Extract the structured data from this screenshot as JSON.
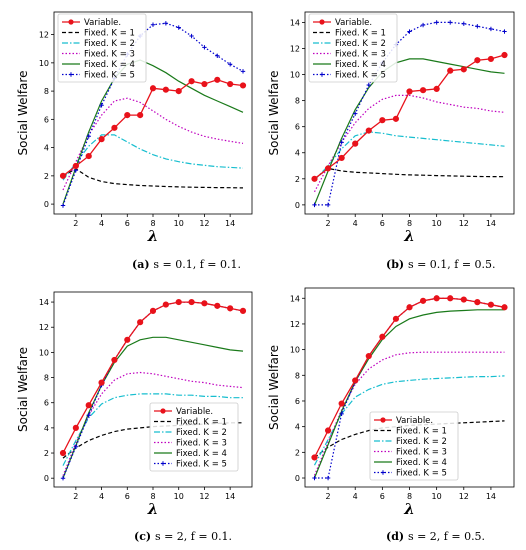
{
  "chart_data": [
    {
      "type": "line",
      "caption_label": "(a)",
      "caption_text": "s = 0.1, f = 0.1.",
      "xlabel": "λ",
      "ylabel": "Social Welfare",
      "xlim": [
        0.3,
        15.7
      ],
      "ylim": [
        -0.7,
        13.6
      ],
      "xticks": [
        2,
        4,
        6,
        8,
        10,
        12,
        14
      ],
      "yticks": [
        0,
        2,
        4,
        6,
        8,
        10,
        12
      ],
      "legend_position": "upper-left",
      "x": [
        1,
        2,
        3,
        4,
        5,
        6,
        7,
        8,
        9,
        10,
        11,
        12,
        13,
        14,
        15
      ],
      "series": [
        {
          "name": "Variable.",
          "color": "#e8121b",
          "style": "solid-marker",
          "values": [
            2.0,
            2.7,
            3.4,
            4.6,
            5.4,
            6.3,
            6.3,
            8.2,
            8.1,
            8.0,
            8.7,
            8.5,
            8.8,
            8.5,
            8.4
          ]
        },
        {
          "name": "Fixed. K = 1",
          "color": "#000000",
          "style": "dashed",
          "values": [
            2.0,
            2.5,
            1.9,
            1.6,
            1.45,
            1.38,
            1.32,
            1.28,
            1.25,
            1.22,
            1.2,
            1.18,
            1.17,
            1.16,
            1.15
          ]
        },
        {
          "name": "Fixed. K = 2",
          "color": "#17becf",
          "style": "dashdot",
          "values": [
            1.7,
            2.9,
            4.1,
            4.9,
            4.9,
            4.4,
            3.9,
            3.5,
            3.2,
            3.0,
            2.85,
            2.75,
            2.65,
            2.6,
            2.55
          ]
        },
        {
          "name": "Fixed. K = 3",
          "color": "#bf00bf",
          "style": "dotted",
          "values": [
            1.0,
            3.0,
            4.9,
            6.3,
            7.3,
            7.5,
            7.2,
            6.6,
            6.0,
            5.5,
            5.1,
            4.8,
            4.6,
            4.45,
            4.3
          ]
        },
        {
          "name": "Fixed. K = 4",
          "color": "#1a7a1a",
          "style": "solid",
          "values": [
            0.0,
            2.6,
            5.1,
            7.3,
            8.9,
            9.9,
            10.2,
            9.8,
            9.3,
            8.7,
            8.2,
            7.7,
            7.3,
            6.9,
            6.5
          ]
        },
        {
          "name": "Fixed. K = 5",
          "color": "#0000cc",
          "style": "dotted-plus",
          "values": [
            -0.1,
            2.4,
            4.8,
            7.0,
            8.9,
            10.6,
            11.9,
            12.7,
            12.8,
            12.5,
            11.9,
            11.1,
            10.5,
            9.9,
            9.4
          ]
        }
      ]
    },
    {
      "type": "line",
      "caption_label": "(b)",
      "caption_text": "s = 0.1, f = 0.5.",
      "xlabel": "λ",
      "ylabel": "Social Welfare",
      "xlim": [
        0.3,
        15.7
      ],
      "ylim": [
        -0.7,
        14.8
      ],
      "xticks": [
        2,
        4,
        6,
        8,
        10,
        12,
        14
      ],
      "yticks": [
        0,
        2,
        4,
        6,
        8,
        10,
        12,
        14
      ],
      "legend_position": "upper-left",
      "x": [
        1,
        2,
        3,
        4,
        5,
        6,
        7,
        8,
        9,
        10,
        11,
        12,
        13,
        14,
        15
      ],
      "series": [
        {
          "name": "Variable.",
          "color": "#e8121b",
          "style": "solid-marker",
          "values": [
            2.0,
            2.8,
            3.6,
            4.7,
            5.7,
            6.5,
            6.6,
            8.7,
            8.8,
            8.9,
            10.3,
            10.4,
            11.1,
            11.2,
            11.5
          ]
        },
        {
          "name": "Fixed. K = 1",
          "color": "#000000",
          "style": "dashed",
          "values": [
            2.0,
            2.8,
            2.6,
            2.5,
            2.45,
            2.4,
            2.35,
            2.3,
            2.28,
            2.25,
            2.22,
            2.2,
            2.18,
            2.17,
            2.16
          ]
        },
        {
          "name": "Fixed. K = 2",
          "color": "#17becf",
          "style": "dashdot",
          "values": [
            1.9,
            3.0,
            4.3,
            5.3,
            5.6,
            5.5,
            5.3,
            5.2,
            5.1,
            5.0,
            4.9,
            4.8,
            4.7,
            4.6,
            4.5
          ]
        },
        {
          "name": "Fixed. K = 3",
          "color": "#bf00bf",
          "style": "dotted",
          "values": [
            1.0,
            3.0,
            4.8,
            6.3,
            7.4,
            8.1,
            8.4,
            8.4,
            8.2,
            7.9,
            7.7,
            7.5,
            7.4,
            7.2,
            7.1
          ]
        },
        {
          "name": "Fixed. K = 4",
          "color": "#1a7a1a",
          "style": "solid",
          "values": [
            0.0,
            2.6,
            5.1,
            7.3,
            9.0,
            10.2,
            10.9,
            11.2,
            11.2,
            11.0,
            10.8,
            10.6,
            10.4,
            10.2,
            10.1
          ]
        },
        {
          "name": "Fixed. K = 5",
          "color": "#0000cc",
          "style": "dotted-plus",
          "values": [
            0.0,
            0.0,
            4.8,
            7.0,
            9.2,
            10.9,
            12.3,
            13.3,
            13.8,
            14.0,
            14.0,
            13.9,
            13.7,
            13.5,
            13.3
          ]
        }
      ]
    },
    {
      "type": "line",
      "caption_label": "(c)",
      "caption_text": "s = 2, f = 0.1.",
      "xlabel": "λ",
      "ylabel": "Social Welfare",
      "xlim": [
        0.3,
        15.7
      ],
      "ylim": [
        -0.7,
        14.8
      ],
      "xticks": [
        2,
        4,
        6,
        8,
        10,
        12,
        14
      ],
      "yticks": [
        0,
        2,
        4,
        6,
        8,
        10,
        12,
        14
      ],
      "legend_position": "lower-right",
      "x": [
        1,
        2,
        3,
        4,
        5,
        6,
        7,
        8,
        9,
        10,
        11,
        12,
        13,
        14,
        15
      ],
      "series": [
        {
          "name": "Variable.",
          "color": "#e8121b",
          "style": "solid-marker",
          "values": [
            2.0,
            4.0,
            5.8,
            7.6,
            9.4,
            11.0,
            12.4,
            13.3,
            13.8,
            14.0,
            14.0,
            13.9,
            13.7,
            13.5,
            13.3
          ]
        },
        {
          "name": "Fixed. K = 1",
          "color": "#000000",
          "style": "dashed",
          "values": [
            1.6,
            2.4,
            3.0,
            3.4,
            3.7,
            3.9,
            4.0,
            4.1,
            4.15,
            4.2,
            4.25,
            4.3,
            4.35,
            4.4,
            4.4
          ]
        },
        {
          "name": "Fixed. K = 2",
          "color": "#17becf",
          "style": "dashdot",
          "values": [
            1.0,
            3.0,
            4.8,
            5.9,
            6.4,
            6.6,
            6.7,
            6.7,
            6.7,
            6.6,
            6.6,
            6.5,
            6.5,
            6.4,
            6.4
          ]
        },
        {
          "name": "Fixed. K = 3",
          "color": "#bf00bf",
          "style": "dotted",
          "values": [
            0.2,
            2.8,
            5.0,
            6.7,
            7.8,
            8.3,
            8.4,
            8.3,
            8.1,
            7.9,
            7.7,
            7.6,
            7.4,
            7.3,
            7.2
          ]
        },
        {
          "name": "Fixed. K = 4",
          "color": "#1a7a1a",
          "style": "solid",
          "values": [
            0.0,
            2.6,
            5.2,
            7.4,
            9.2,
            10.5,
            11.0,
            11.2,
            11.2,
            11.0,
            10.8,
            10.6,
            10.4,
            10.2,
            10.1
          ]
        },
        {
          "name": "Fixed. K = 5",
          "color": "#0000cc",
          "style": "dotted-plus",
          "values": [
            0.0,
            2.5,
            5.0,
            7.4,
            9.4,
            11.0,
            12.4,
            13.3,
            13.8,
            14.0,
            14.0,
            13.9,
            13.7,
            13.5,
            13.3
          ]
        }
      ]
    },
    {
      "type": "line",
      "caption_label": "(d)",
      "caption_text": "s = 2, f = 0.5.",
      "xlabel": "λ",
      "ylabel": "Social Welfare",
      "xlim": [
        0.3,
        15.7
      ],
      "ylim": [
        -0.7,
        14.8
      ],
      "xticks": [
        2,
        4,
        6,
        8,
        10,
        12,
        14
      ],
      "yticks": [
        0,
        2,
        4,
        6,
        8,
        10,
        12,
        14
      ],
      "legend_position": "lower-left",
      "x": [
        1,
        2,
        3,
        4,
        5,
        6,
        7,
        8,
        9,
        10,
        11,
        12,
        13,
        14,
        15
      ],
      "series": [
        {
          "name": "Variable.",
          "color": "#e8121b",
          "style": "solid-marker",
          "values": [
            1.6,
            3.7,
            5.8,
            7.6,
            9.5,
            11.0,
            12.4,
            13.3,
            13.8,
            14.0,
            14.0,
            13.9,
            13.7,
            13.5,
            13.3
          ]
        },
        {
          "name": "Fixed. K = 1",
          "color": "#000000",
          "style": "dashed",
          "values": [
            1.6,
            2.4,
            3.0,
            3.4,
            3.7,
            3.9,
            4.0,
            4.1,
            4.15,
            4.2,
            4.25,
            4.3,
            4.35,
            4.4,
            4.45
          ]
        },
        {
          "name": "Fixed. K = 2",
          "color": "#17becf",
          "style": "dashdot",
          "values": [
            1.0,
            3.0,
            5.0,
            6.3,
            6.9,
            7.3,
            7.5,
            7.6,
            7.7,
            7.75,
            7.8,
            7.85,
            7.9,
            7.9,
            7.95
          ]
        },
        {
          "name": "Fixed. K = 3",
          "color": "#bf00bf",
          "style": "dotted",
          "values": [
            0.2,
            2.8,
            5.3,
            7.3,
            8.5,
            9.2,
            9.6,
            9.75,
            9.8,
            9.8,
            9.8,
            9.8,
            9.8,
            9.8,
            9.8
          ]
        },
        {
          "name": "Fixed. K = 4",
          "color": "#1a7a1a",
          "style": "solid",
          "values": [
            0.0,
            2.6,
            5.2,
            7.5,
            9.3,
            10.8,
            11.8,
            12.4,
            12.7,
            12.9,
            13.0,
            13.05,
            13.1,
            13.1,
            13.1
          ]
        },
        {
          "name": "Fixed. K = 5",
          "color": "#0000cc",
          "style": "dotted-plus",
          "values": [
            0.0,
            0.0,
            5.0,
            7.5,
            9.5,
            11.0,
            12.4,
            13.3,
            13.8,
            14.0,
            14.0,
            13.9,
            13.7,
            13.5,
            13.3
          ]
        }
      ]
    }
  ]
}
